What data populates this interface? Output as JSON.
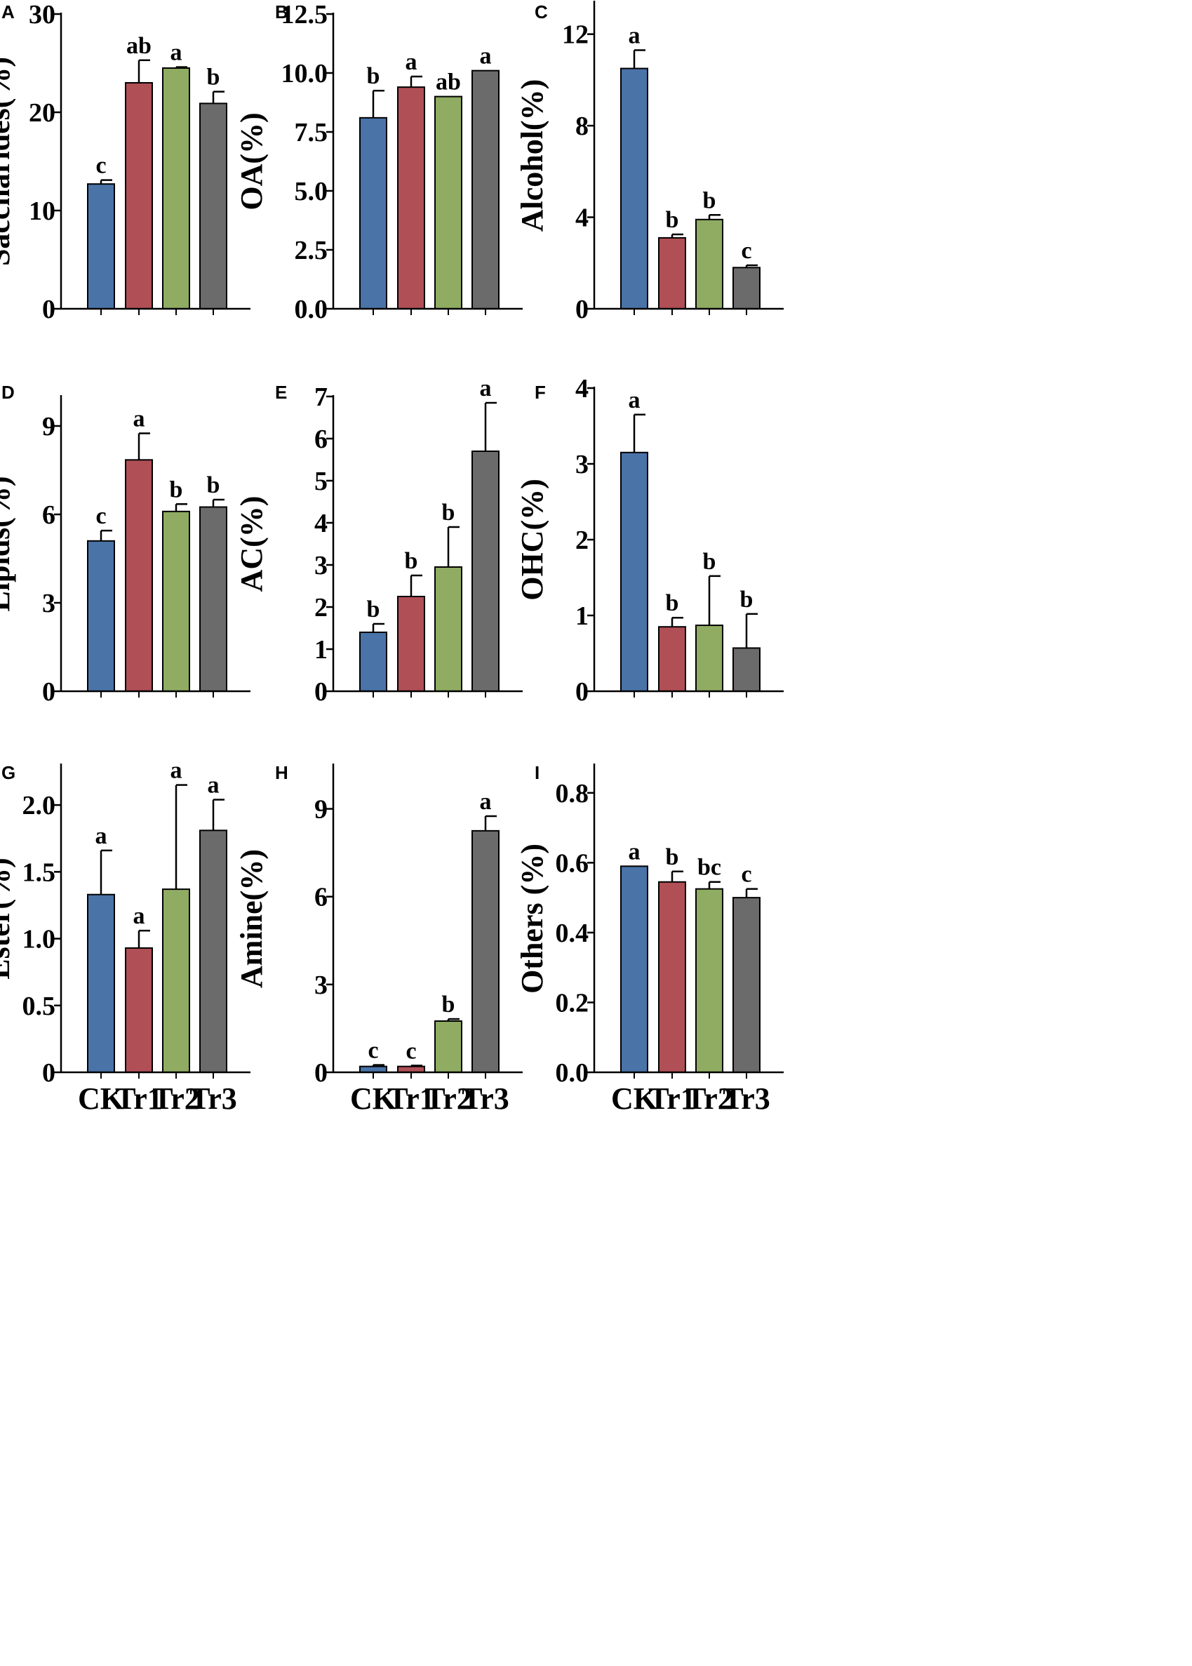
{
  "figure": {
    "series_colors": [
      "#4a73a8",
      "#b04f56",
      "#8fac62",
      "#6b6b6b"
    ]
  },
  "chart_data": [
    {
      "panel": "A",
      "type": "bar",
      "categories": [
        "CK",
        "Tr1",
        "Tr2",
        "Tr3"
      ],
      "values": [
        12.7,
        23.0,
        24.5,
        20.9
      ],
      "errors": [
        0.4,
        2.3,
        0.1,
        1.2
      ],
      "significance": [
        "c",
        "ab",
        "a",
        "b"
      ],
      "ylabel": "Saccharides(%)",
      "ylim": [
        0,
        30
      ],
      "yticks": [
        0,
        10,
        20,
        30
      ],
      "ytick_labels": [
        "0",
        "10",
        "20",
        "30"
      ],
      "show_xlabels": false
    },
    {
      "panel": "B",
      "type": "bar",
      "categories": [
        "CK",
        "Tr1",
        "Tr2",
        "Tr3"
      ],
      "values": [
        8.1,
        9.4,
        9.0,
        10.1
      ],
      "errors": [
        1.15,
        0.45,
        0.0,
        0.0
      ],
      "significance": [
        "b",
        "a",
        "ab",
        "a"
      ],
      "ylabel": "OA(%)",
      "ylim": [
        0,
        12.5
      ],
      "yticks": [
        0,
        2.5,
        5,
        7.5,
        10,
        12.5
      ],
      "ytick_labels": [
        "0.0",
        "2.5",
        "5.0",
        "7.5",
        "10.0",
        "12.5"
      ],
      "show_xlabels": false
    },
    {
      "panel": "C",
      "type": "bar",
      "categories": [
        "CK",
        "Tr1",
        "Tr2",
        "Tr3"
      ],
      "values": [
        10.5,
        3.1,
        3.9,
        1.8
      ],
      "errors": [
        0.8,
        0.15,
        0.2,
        0.1
      ],
      "significance": [
        "a",
        "b",
        "b",
        "c"
      ],
      "ylabel": "Alcohol(%)",
      "ylim": [
        0,
        13.4
      ],
      "yticks": [
        0,
        4,
        8,
        12
      ],
      "ytick_labels": [
        "0",
        "4",
        "8",
        "12"
      ],
      "show_xlabels": false
    },
    {
      "panel": "D",
      "type": "bar",
      "categories": [
        "CK",
        "Tr1",
        "Tr2",
        "Tr3"
      ],
      "values": [
        5.1,
        7.85,
        6.1,
        6.25
      ],
      "errors": [
        0.35,
        0.9,
        0.25,
        0.25
      ],
      "significance": [
        "c",
        "a",
        "b",
        "b"
      ],
      "ylabel": "Lipids(%)",
      "ylim": [
        0,
        10.0
      ],
      "yticks": [
        0,
        3,
        6,
        9
      ],
      "ytick_labels": [
        "0",
        "3",
        "6",
        "9"
      ],
      "show_xlabels": false
    },
    {
      "panel": "E",
      "type": "bar",
      "categories": [
        "CK",
        "Tr1",
        "Tr2",
        "Tr3"
      ],
      "values": [
        1.4,
        2.25,
        2.95,
        5.7
      ],
      "errors": [
        0.2,
        0.5,
        0.95,
        1.15
      ],
      "significance": [
        "b",
        "b",
        "b",
        "a"
      ],
      "ylabel": "AC(%)",
      "ylim": [
        0,
        7
      ],
      "yticks": [
        0,
        1,
        2,
        3,
        4,
        5,
        6,
        7
      ],
      "ytick_labels": [
        "0",
        "1",
        "2",
        "3",
        "4",
        "5",
        "6",
        "7"
      ],
      "show_xlabels": false
    },
    {
      "panel": "F",
      "type": "bar",
      "categories": [
        "CK",
        "Tr1",
        "Tr2",
        "Tr3"
      ],
      "values": [
        3.15,
        0.85,
        0.87,
        0.57
      ],
      "errors": [
        0.5,
        0.12,
        0.65,
        0.45
      ],
      "significance": [
        "a",
        "b",
        "b",
        "b"
      ],
      "ylabel": "OHC(%)",
      "ylim": [
        0,
        4
      ],
      "yticks": [
        0,
        1,
        2,
        3,
        4
      ],
      "ytick_labels": [
        "0",
        "1",
        "2",
        "3",
        "4"
      ],
      "show_xlabels": false
    },
    {
      "panel": "G",
      "type": "bar",
      "categories": [
        "CK",
        "Tr1",
        "Tr2",
        "Tr3"
      ],
      "values": [
        1.33,
        0.93,
        1.37,
        1.81
      ],
      "errors": [
        0.33,
        0.13,
        0.78,
        0.23
      ],
      "significance": [
        "a",
        "a",
        "a",
        "a"
      ],
      "ylabel": "Ester(%)",
      "ylim": [
        0,
        2.3
      ],
      "yticks": [
        0,
        0.5,
        1.0,
        1.5,
        2.0
      ],
      "ytick_labels": [
        "0",
        "0.5",
        "1.0",
        "1.5",
        "2.0"
      ],
      "show_xlabels": true
    },
    {
      "panel": "H",
      "type": "bar",
      "categories": [
        "CK",
        "Tr1",
        "Tr2",
        "Tr3"
      ],
      "values": [
        0.2,
        0.2,
        1.75,
        8.25
      ],
      "errors": [
        0.05,
        0.03,
        0.07,
        0.5
      ],
      "significance": [
        "c",
        "c",
        "b",
        "a"
      ],
      "ylabel": "Amine(%)",
      "ylim": [
        0,
        10.5
      ],
      "yticks": [
        0,
        3,
        6,
        9
      ],
      "ytick_labels": [
        "0",
        "3",
        "6",
        "9"
      ],
      "show_xlabels": true
    },
    {
      "panel": "I",
      "type": "bar",
      "categories": [
        "CK",
        "Tr1",
        "Tr2",
        "Tr3"
      ],
      "values": [
        0.59,
        0.545,
        0.525,
        0.5
      ],
      "errors": [
        0.0,
        0.03,
        0.02,
        0.025
      ],
      "significance": [
        "a",
        "b",
        "bc",
        "c"
      ],
      "ylabel": "Others (%)",
      "ylim": [
        0,
        0.88
      ],
      "yticks": [
        0,
        0.2,
        0.4,
        0.6,
        0.8
      ],
      "ytick_labels": [
        "0.0",
        "0.2",
        "0.4",
        "0.6",
        "0.8"
      ],
      "show_xlabels": true
    }
  ]
}
